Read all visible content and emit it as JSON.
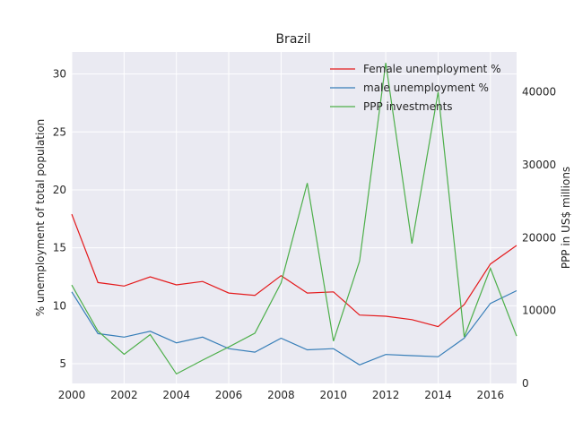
{
  "chart_data": {
    "type": "line",
    "title": "Brazil",
    "xlabel": "",
    "ylabel": "% unemployment of total population",
    "y2label": "PPP in US$ millions",
    "xlim": [
      2000,
      2017
    ],
    "ylim": [
      3.3,
      31.9
    ],
    "y2lim": [
      0,
      45500
    ],
    "x_ticks": [
      2000,
      2002,
      2004,
      2006,
      2008,
      2010,
      2012,
      2014,
      2016
    ],
    "y_ticks": [
      5,
      10,
      15,
      20,
      25,
      30
    ],
    "y2_ticks": [
      0,
      10000,
      20000,
      30000,
      40000
    ],
    "grid": true,
    "legend_position": "upper-right",
    "x": [
      2000,
      2001,
      2002,
      2003,
      2004,
      2005,
      2006,
      2007,
      2008,
      2009,
      2010,
      2011,
      2012,
      2013,
      2014,
      2015,
      2016,
      2017
    ],
    "series": [
      {
        "name": "Female unemployment %",
        "axis": "left",
        "color": "#e41a1c",
        "values": [
          17.9,
          12.0,
          11.7,
          12.5,
          11.8,
          12.1,
          11.1,
          10.9,
          12.6,
          11.1,
          11.2,
          9.2,
          9.1,
          8.8,
          8.2,
          10.1,
          13.6,
          15.2
        ]
      },
      {
        "name": "male unemployment %",
        "axis": "left",
        "color": "#377eb8",
        "values": [
          11.2,
          7.6,
          7.3,
          7.8,
          6.8,
          7.3,
          6.3,
          6.0,
          7.2,
          6.2,
          6.3,
          4.9,
          5.8,
          5.7,
          5.6,
          7.2,
          10.2,
          11.3
        ]
      },
      {
        "name": "PPP investments",
        "axis": "right",
        "color": "#4daf4a",
        "values": [
          13500,
          7200,
          4000,
          6700,
          1300,
          3200,
          5000,
          6900,
          13800,
          27500,
          5800,
          16800,
          44000,
          19200,
          40000,
          6400,
          15800,
          6500
        ]
      }
    ]
  }
}
